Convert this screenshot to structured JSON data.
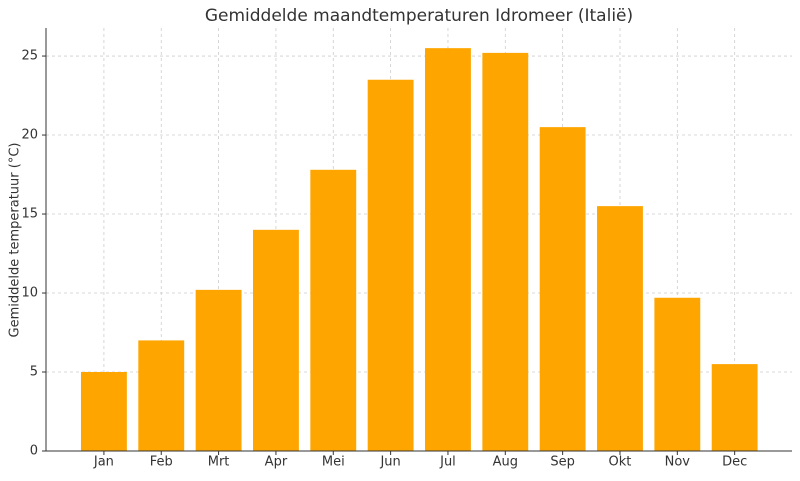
{
  "chart_data": {
    "type": "bar",
    "title": "Gemiddelde maandtemperaturen Idromeer (Italië)",
    "y_label": "Gemiddelde temperatuur (°C)",
    "categories": [
      "Jan",
      "Feb",
      "Mrt",
      "Apr",
      "Mei",
      "Jun",
      "Jul",
      "Aug",
      "Sep",
      "Okt",
      "Nov",
      "Dec"
    ],
    "values": [
      5,
      7,
      10.2,
      14,
      17.8,
      23.5,
      25.5,
      25.2,
      20.5,
      15.5,
      9.7,
      5.5
    ],
    "color": "#ffa500",
    "ylim": [
      0,
      26.775
    ],
    "yticks": [
      0,
      5,
      10,
      15,
      20,
      25
    ],
    "grid": true
  }
}
